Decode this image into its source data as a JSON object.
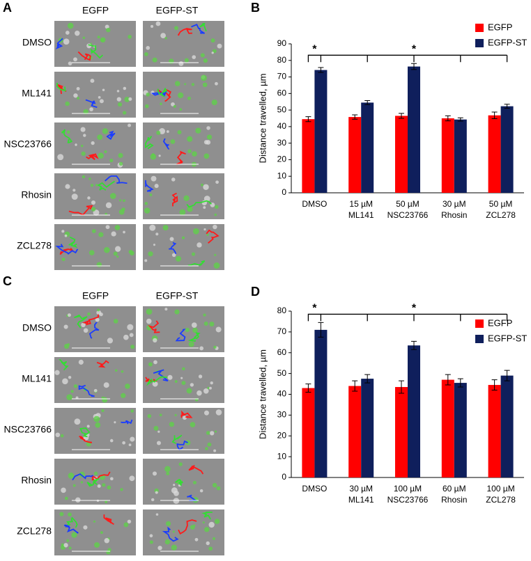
{
  "panel_labels": [
    "A",
    "B",
    "C",
    "D"
  ],
  "image_grids": [
    {
      "columns": [
        "EGFP",
        "EGFP-ST"
      ],
      "rows": [
        "DMSO",
        "ML141",
        "NSC23766",
        "Rhosin",
        "ZCL278"
      ]
    },
    {
      "columns": [
        "EGFP",
        "EGFP-ST"
      ],
      "rows": [
        "DMSO",
        "ML141",
        "NSC23766",
        "Rhosin",
        "ZCL278"
      ]
    }
  ],
  "chart_data": [
    {
      "type": "bar",
      "y_label": "Distance travelled, µm",
      "categories": [
        [
          "DMSO"
        ],
        [
          "15 µM",
          "ML141"
        ],
        [
          "50 µM",
          "NSC23766"
        ],
        [
          "30 µM",
          "Rhosin"
        ],
        [
          "50 µM",
          "ZCL278"
        ]
      ],
      "series": [
        {
          "name": "EGFP",
          "color": "#ff0000",
          "values": [
            44.5,
            45.8,
            46.5,
            45,
            46.8
          ],
          "errors": [
            1.5,
            1.3,
            1.5,
            1.5,
            2
          ]
        },
        {
          "name": "EGFP-ST",
          "color": "#0f1f5c",
          "values": [
            74.2,
            54.5,
            76.3,
            44.3,
            52.3
          ],
          "errors": [
            1.5,
            1.2,
            1.8,
            1,
            1.2
          ]
        }
      ],
      "ylim": [
        0,
        90
      ],
      "yticks": [
        0,
        10,
        20,
        30,
        40,
        50,
        60,
        70,
        80,
        90
      ],
      "annotations": [
        "*",
        "*"
      ]
    },
    {
      "type": "bar",
      "y_label": "Distance travelled, µm",
      "categories": [
        [
          "DMSO"
        ],
        [
          "30 µM",
          "ML141"
        ],
        [
          "100 µM",
          "NSC23766"
        ],
        [
          "60 µM",
          "Rhosin"
        ],
        [
          "100 µM",
          "ZCL278"
        ]
      ],
      "series": [
        {
          "name": "EGFP",
          "color": "#ff0000",
          "values": [
            43,
            44,
            43.5,
            47,
            44.5
          ],
          "errors": [
            2,
            2.5,
            3,
            2.5,
            2.5
          ]
        },
        {
          "name": "EGFP-ST",
          "color": "#0f1f5c",
          "values": [
            71,
            47.5,
            63.5,
            45.5,
            49
          ],
          "errors": [
            3.5,
            2,
            2,
            2,
            2.5
          ]
        }
      ],
      "ylim": [
        0,
        80
      ],
      "yticks": [
        0,
        10,
        20,
        30,
        40,
        50,
        60,
        70,
        80
      ],
      "annotations": [
        "*",
        "*"
      ]
    }
  ]
}
